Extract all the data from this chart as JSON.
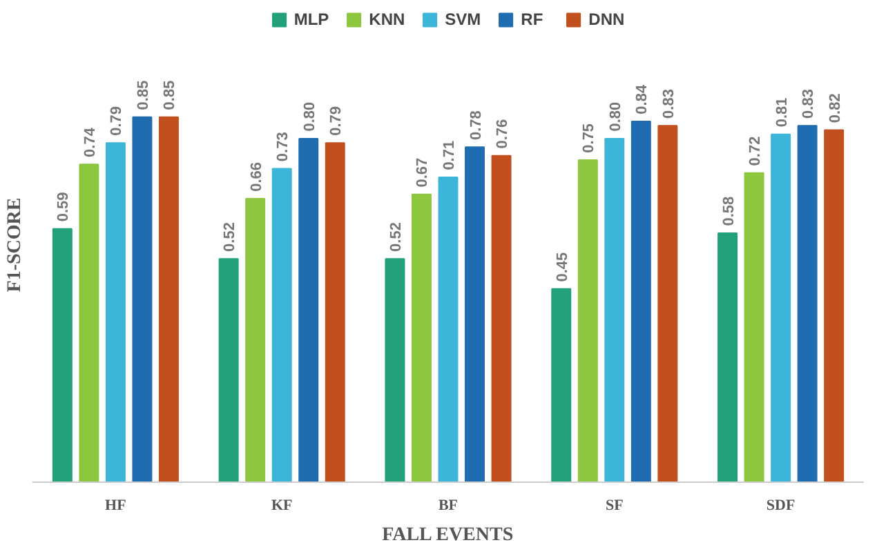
{
  "chart_data": {
    "type": "bar",
    "xlabel": "FALL EVENTS",
    "ylabel": "F1-SCORE",
    "categories": [
      "HF",
      "KF",
      "BF",
      "SF",
      "SDF"
    ],
    "series": [
      {
        "name": "MLP",
        "color": "#21a07a",
        "values": [
          0.59,
          0.52,
          0.52,
          0.45,
          0.58
        ],
        "value_labels": [
          "0.59",
          "0.52",
          "0.52",
          "0.45",
          "0.58"
        ]
      },
      {
        "name": "KNN",
        "color": "#8dc63f",
        "values": [
          0.74,
          0.66,
          0.67,
          0.75,
          0.72
        ],
        "value_labels": [
          "0.74",
          "0.66",
          "0.67",
          "0.75",
          "0.72"
        ]
      },
      {
        "name": "SVM",
        "color": "#3db5d8",
        "values": [
          0.79,
          0.73,
          0.71,
          0.8,
          0.81
        ],
        "value_labels": [
          "0.79",
          "0.73",
          "0.71",
          "0.80",
          "0.81"
        ]
      },
      {
        "name": "RF",
        "color": "#1f6db0",
        "values": [
          0.85,
          0.8,
          0.78,
          0.84,
          0.83
        ],
        "value_labels": [
          "0.85",
          "0.80",
          "0.78",
          "0.84",
          "0.83"
        ]
      },
      {
        "name": "DNN",
        "color": "#c2501e",
        "values": [
          0.85,
          0.79,
          0.76,
          0.83,
          0.82
        ],
        "value_labels": [
          "0.85",
          "0.79",
          "0.76",
          "0.83",
          "0.82"
        ]
      }
    ],
    "legend": "top"
  }
}
